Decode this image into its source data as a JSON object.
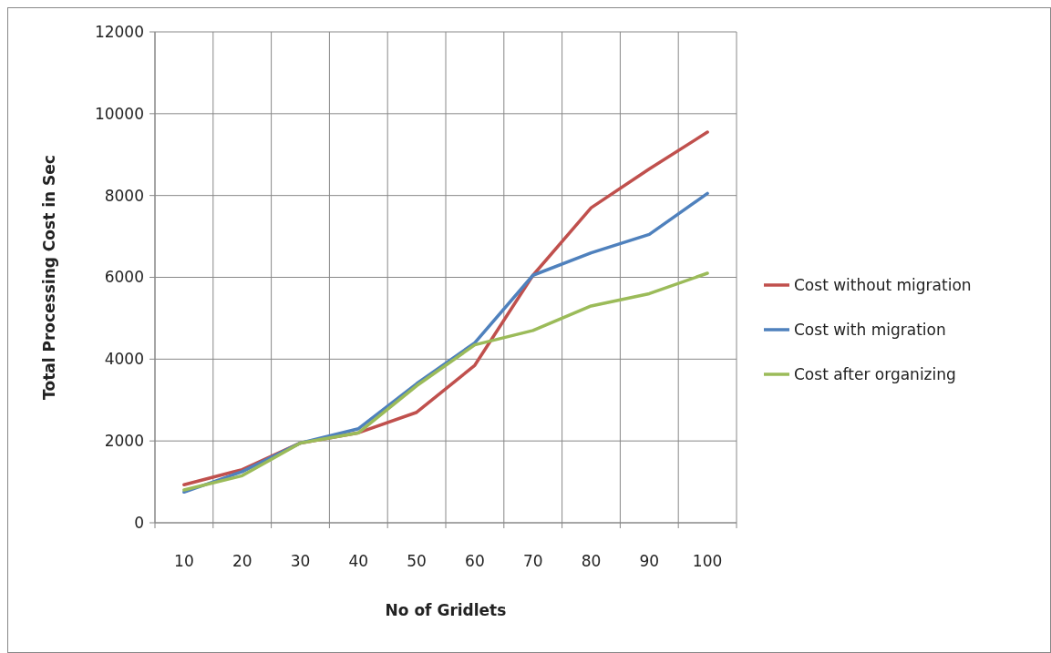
{
  "chart_data": {
    "type": "line",
    "xlabel": "No of Gridlets",
    "ylabel": "Total Processing Cost in Sec",
    "categories": [
      "10",
      "20",
      "30",
      "40",
      "50",
      "60",
      "70",
      "80",
      "90",
      "100"
    ],
    "ylim": [
      0,
      12000
    ],
    "yticks": [
      0,
      2000,
      4000,
      6000,
      8000,
      10000,
      12000
    ],
    "grid": true,
    "legend": "right",
    "marker": "none",
    "series": [
      {
        "name": "Cost without migration",
        "color": "#c0504d",
        "values": [
          930,
          1300,
          1950,
          2200,
          2700,
          3850,
          6050,
          7700,
          8650,
          9550
        ]
      },
      {
        "name": "Cost with migration",
        "color": "#4f81bd",
        "values": [
          750,
          1250,
          1950,
          2300,
          3400,
          4400,
          6050,
          6600,
          7050,
          8050
        ]
      },
      {
        "name": "Cost after organizing",
        "color": "#9bbb59",
        "values": [
          800,
          1150,
          1950,
          2200,
          3350,
          4350,
          4700,
          5300,
          5600,
          6100
        ]
      }
    ]
  }
}
